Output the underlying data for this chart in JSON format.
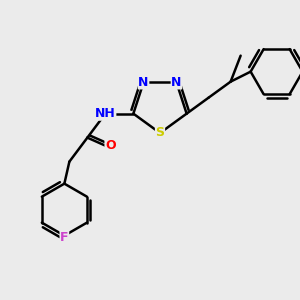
{
  "bg_color": "#ebebeb",
  "bond_color": "#000000",
  "bond_lw": 1.8,
  "atom_colors": {
    "N": "#0000ff",
    "S": "#cccc00",
    "O": "#ff0000",
    "F": "#cc44cc",
    "H": "#008080",
    "C": "#000000"
  }
}
